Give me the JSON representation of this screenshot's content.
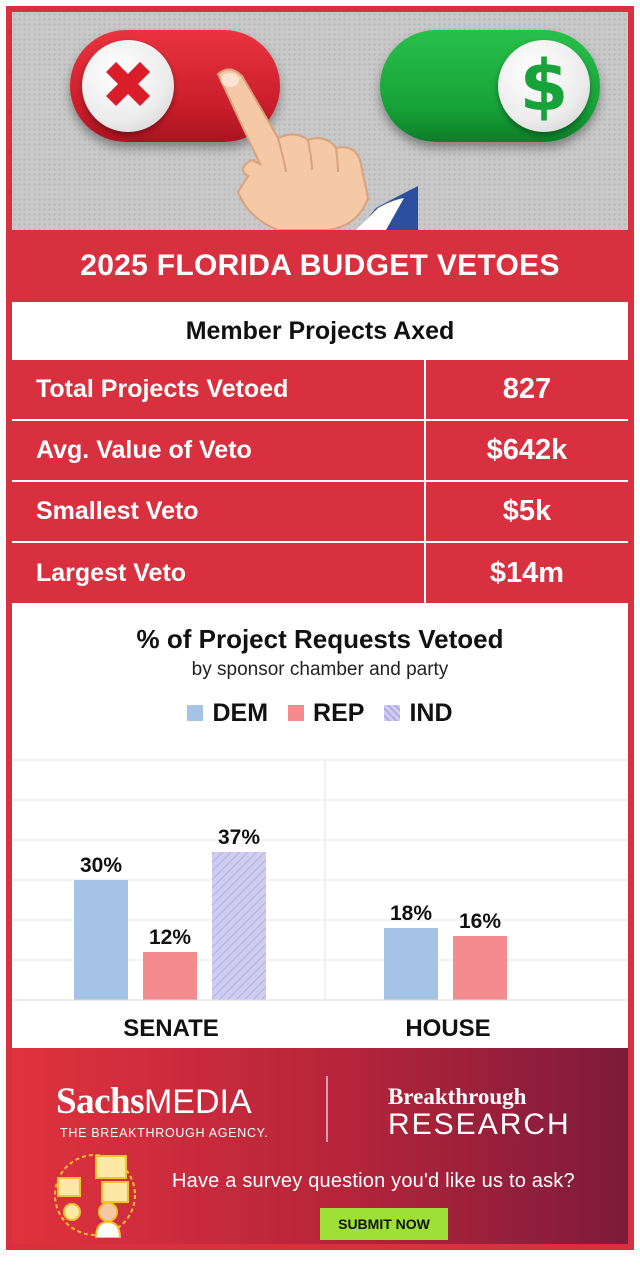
{
  "header": {
    "title": "2025 FLORIDA BUDGET VETOES",
    "subtitle": "Member Projects Axed"
  },
  "stats": [
    {
      "label": "Total Projects Vetoed",
      "value": "827"
    },
    {
      "label": "Avg. Value of Veto",
      "value": "$642k"
    },
    {
      "label": "Smallest Veto",
      "value": "$5k"
    },
    {
      "label": "Largest Veto",
      "value": "$14m"
    }
  ],
  "hero": {
    "left_toggle_icon": "x-icon",
    "right_toggle_icon": "dollar-icon",
    "pointer_icon": "pointing-hand-icon",
    "left_toggle_color": "#d91d2a",
    "right_toggle_color": "#18a33a"
  },
  "chart_data": {
    "type": "bar",
    "title": "% of Project Requests Vetoed",
    "subtitle": "by sponsor chamber and party",
    "categories": [
      "SENATE",
      "HOUSE"
    ],
    "series": [
      {
        "name": "DEM",
        "color": "#a4c3e6",
        "values": [
          30,
          18
        ],
        "labels": [
          "30%",
          "18%"
        ]
      },
      {
        "name": "REP",
        "color": "#f48b8f",
        "values": [
          12,
          16
        ],
        "labels": [
          "12%",
          "16%"
        ]
      },
      {
        "name": "IND",
        "color": "#c8c6ec",
        "pattern": "hatched",
        "values": [
          37,
          null
        ],
        "labels": [
          "37%",
          ""
        ]
      }
    ],
    "ylim": [
      0,
      60
    ],
    "unit": "%",
    "grid": true,
    "legend": "top-center"
  },
  "footer": {
    "brand_name_bold": "Sachs",
    "brand_name_light": "MEDIA",
    "brand_tagline": "THE BREAKTHROUGH AGENCY.",
    "research_top": "Breakthrough",
    "research_bottom": "RESEARCH",
    "question": "Have a survey question you'd like us to ask?",
    "button_label": "SUBMIT NOW",
    "button_color": "#9ee037",
    "gradient_colors": [
      "#e0323e",
      "#7d1b3c"
    ]
  },
  "colors": {
    "accent": "#d8303f"
  }
}
